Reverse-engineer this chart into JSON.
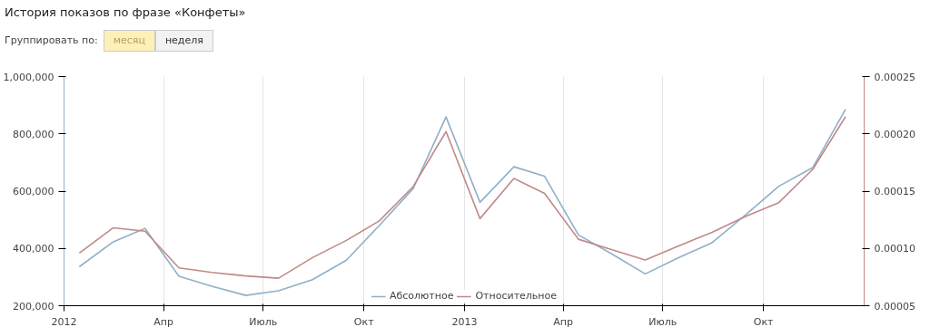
{
  "chart_data": {
    "type": "line",
    "title": "История показов по фразе «Конфеты»",
    "annotations": [
      "Группировать по:",
      "месяц",
      "неделя"
    ],
    "x": [
      "2012-01-15",
      "2012-02-15",
      "2012-03-15",
      "2012-04-15",
      "2012-05-15",
      "2012-06-15",
      "2012-07-15",
      "2012-08-15",
      "2012-09-15",
      "2012-10-15",
      "2012-11-15",
      "2012-12-15",
      "2013-01-15",
      "2013-02-15",
      "2013-03-15",
      "2013-04-15",
      "2013-05-15",
      "2013-06-15",
      "2013-07-15",
      "2013-08-15",
      "2013-09-15",
      "2013-10-15",
      "2013-11-15",
      "2013-12-15"
    ],
    "series": [
      {
        "name": "Абсолютное",
        "color": "#8fb0c8",
        "values": [
          336000,
          423000,
          470000,
          303000,
          268000,
          236000,
          252000,
          291000,
          359000,
          480000,
          609000,
          859000,
          561000,
          685000,
          652000,
          447000,
          382000,
          311000,
          367000,
          420000,
          518000,
          617000,
          682000,
          886000
        ]
      },
      {
        "name": "Относительное",
        "color": "#c08a88",
        "axis": "y2",
        "values": [
          9.6e-05,
          0.000118,
          0.000115,
          8.3e-05,
          7.9e-05,
          7.6e-05,
          7.4e-05,
          9.2e-05,
          0.000107,
          0.000124,
          0.000154,
          0.000202,
          0.000126,
          0.000161,
          0.000148,
          0.000108,
          9.9e-05,
          9e-05,
          0.000102,
          0.000114,
          0.000128,
          0.00014,
          0.000169,
          0.000215
        ]
      }
    ],
    "xlim": [
      "2012-01-01",
      "2014-01-01"
    ],
    "xticks": [
      {
        "value": "2012-01-01",
        "label": "2012"
      },
      {
        "value": "2012-04-01",
        "label": "Апр"
      },
      {
        "value": "2012-07-01",
        "label": "Июль"
      },
      {
        "value": "2012-10-01",
        "label": "Окт"
      },
      {
        "value": "2013-01-01",
        "label": "2013"
      },
      {
        "value": "2013-04-01",
        "label": "Апр"
      },
      {
        "value": "2013-07-01",
        "label": "Июль"
      },
      {
        "value": "2013-10-01",
        "label": "Окт"
      }
    ],
    "ylim": [
      200000,
      1000000
    ],
    "yticks": [
      {
        "value": 200000,
        "label": "200,000"
      },
      {
        "value": 400000,
        "label": "400,000"
      },
      {
        "value": 600000,
        "label": "600,000"
      },
      {
        "value": 800000,
        "label": "800,000"
      },
      {
        "value": 1000000,
        "label": "1,000,000"
      }
    ],
    "y2lim": [
      5e-05,
      0.00025
    ],
    "y2ticks": [
      {
        "value": 5e-05,
        "label": "0.00005"
      },
      {
        "value": 0.0001,
        "label": "0.00010"
      },
      {
        "value": 0.00015,
        "label": "0.00015"
      },
      {
        "value": 0.0002,
        "label": "0.00020"
      },
      {
        "value": 0.00025,
        "label": "0.00025"
      }
    ],
    "grid": "x",
    "legend": "bottom center",
    "marker": "none",
    "line_style": "solid"
  }
}
